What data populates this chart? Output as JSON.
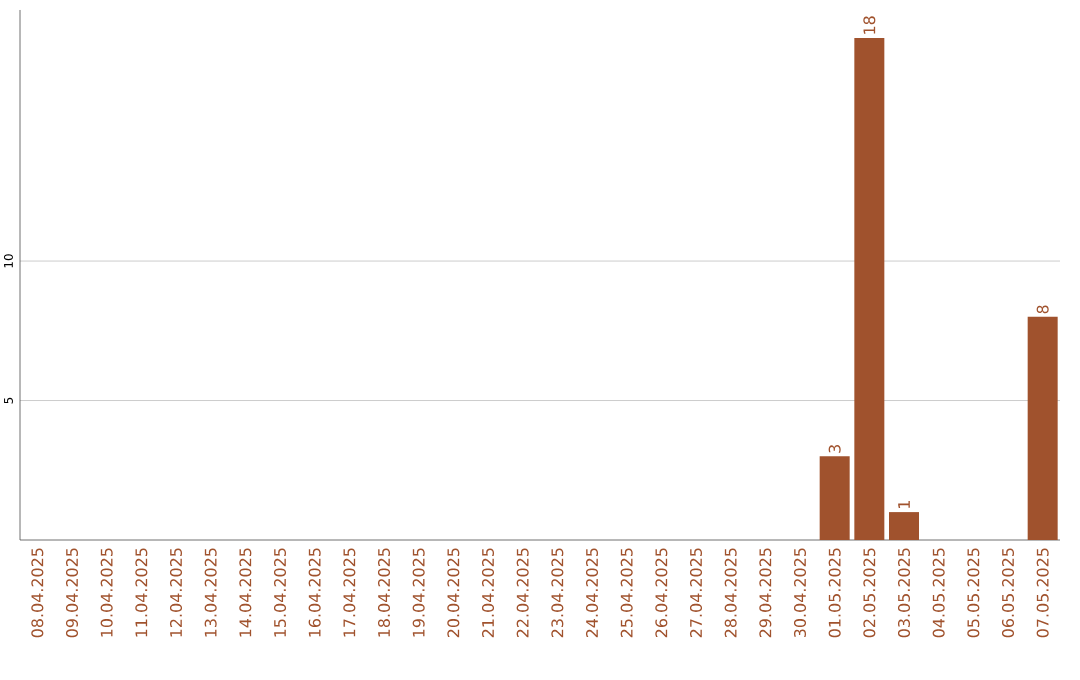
{
  "chart_data": {
    "type": "bar",
    "categories": [
      "08.04.2025",
      "09.04.2025",
      "10.04.2025",
      "11.04.2025",
      "12.04.2025",
      "13.04.2025",
      "14.04.2025",
      "15.04.2025",
      "16.04.2025",
      "17.04.2025",
      "18.04.2025",
      "19.04.2025",
      "20.04.2025",
      "21.04.2025",
      "22.04.2025",
      "23.04.2025",
      "24.04.2025",
      "25.04.2025",
      "26.04.2025",
      "27.04.2025",
      "28.04.2025",
      "29.04.2025",
      "30.04.2025",
      "01.05.2025",
      "02.05.2025",
      "03.05.2025",
      "04.05.2025",
      "05.05.2025",
      "06.05.2025",
      "07.05.2025"
    ],
    "values": [
      0,
      0,
      0,
      0,
      0,
      0,
      0,
      0,
      0,
      0,
      0,
      0,
      0,
      0,
      0,
      0,
      0,
      0,
      0,
      0,
      0,
      0,
      0,
      3,
      18,
      1,
      0,
      0,
      0,
      8
    ],
    "value_labels": [
      null,
      null,
      null,
      null,
      null,
      null,
      null,
      null,
      null,
      null,
      null,
      null,
      null,
      null,
      null,
      null,
      null,
      null,
      null,
      null,
      null,
      null,
      null,
      "3",
      "18",
      "1",
      null,
      null,
      null,
      "8"
    ],
    "color": "#a0522d",
    "ylim": [
      0,
      19
    ],
    "yticks": [
      5,
      10
    ],
    "grid": "y"
  }
}
